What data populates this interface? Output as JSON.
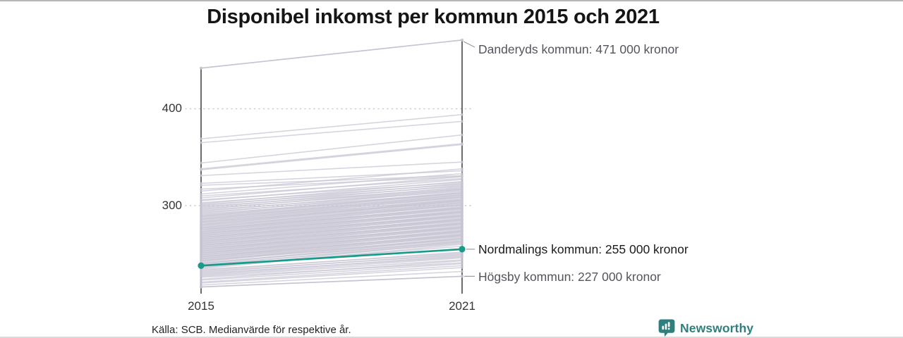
{
  "header": {
    "title": "Disponibel inkomst per kommun 2015 och 2021"
  },
  "chart_data": {
    "type": "line",
    "subtype": "slope-chart",
    "x_axis": {
      "ticks": [
        "2015",
        "2021"
      ]
    },
    "y_axis": {
      "ticks": [
        {
          "label": "400",
          "value": 400
        },
        {
          "label": "300",
          "value": 300
        }
      ]
    },
    "grid": "dotted horizontal at ticks",
    "highlight_series": {
      "name": "Nordmalings kommun",
      "label": "Nordmalings kommun: 255 000 kronor",
      "values": [
        238,
        255
      ],
      "color": "#199a8b"
    },
    "annotated_series": [
      {
        "name": "Danderyds kommun",
        "label": "Danderyds kommun: 471 000 kronor",
        "values": [
          442,
          471
        ]
      },
      {
        "name": "Högsby kommun",
        "label": "Högsby kommun: 227 000 kronor",
        "values": [
          216,
          227
        ]
      }
    ],
    "background_color": "#c7c5d3",
    "background_lines": [
      [
        218,
        232
      ],
      [
        220,
        236
      ],
      [
        221,
        238
      ],
      [
        223,
        240
      ],
      [
        224,
        243
      ],
      [
        226,
        241
      ],
      [
        227,
        244
      ],
      [
        228,
        246
      ],
      [
        229,
        248
      ],
      [
        230,
        247
      ],
      [
        231,
        250
      ],
      [
        232,
        249
      ],
      [
        233,
        252
      ],
      [
        234,
        251
      ],
      [
        235,
        260
      ],
      [
        236,
        262
      ],
      [
        237,
        258
      ],
      [
        238,
        263
      ],
      [
        239,
        261
      ],
      [
        240,
        264
      ],
      [
        240,
        266
      ],
      [
        241,
        263
      ],
      [
        242,
        267
      ],
      [
        243,
        265
      ],
      [
        243,
        269
      ],
      [
        244,
        266
      ],
      [
        245,
        270
      ],
      [
        245,
        268
      ],
      [
        246,
        271
      ],
      [
        247,
        269
      ],
      [
        247,
        273
      ],
      [
        248,
        270
      ],
      [
        249,
        274
      ],
      [
        249,
        272
      ],
      [
        250,
        275
      ],
      [
        251,
        273
      ],
      [
        251,
        277
      ],
      [
        252,
        274
      ],
      [
        253,
        278
      ],
      [
        253,
        276
      ],
      [
        254,
        279
      ],
      [
        255,
        277
      ],
      [
        255,
        281
      ],
      [
        256,
        278
      ],
      [
        257,
        282
      ],
      [
        257,
        280
      ],
      [
        258,
        283
      ],
      [
        259,
        281
      ],
      [
        259,
        285
      ],
      [
        260,
        282
      ],
      [
        261,
        286
      ],
      [
        261,
        284
      ],
      [
        262,
        287
      ],
      [
        263,
        285
      ],
      [
        263,
        289
      ],
      [
        264,
        286
      ],
      [
        265,
        290
      ],
      [
        265,
        288
      ],
      [
        266,
        291
      ],
      [
        267,
        289
      ],
      [
        267,
        293
      ],
      [
        268,
        290
      ],
      [
        269,
        294
      ],
      [
        269,
        292
      ],
      [
        270,
        295
      ],
      [
        271,
        293
      ],
      [
        271,
        297
      ],
      [
        272,
        294
      ],
      [
        273,
        298
      ],
      [
        273,
        296
      ],
      [
        274,
        299
      ],
      [
        275,
        297
      ],
      [
        275,
        301
      ],
      [
        276,
        298
      ],
      [
        277,
        302
      ],
      [
        277,
        300
      ],
      [
        278,
        303
      ],
      [
        279,
        301
      ],
      [
        280,
        305
      ],
      [
        280,
        303
      ],
      [
        281,
        306
      ],
      [
        282,
        304
      ],
      [
        283,
        307
      ],
      [
        283,
        305
      ],
      [
        284,
        309
      ],
      [
        285,
        306
      ],
      [
        286,
        310
      ],
      [
        286,
        308
      ],
      [
        287,
        311
      ],
      [
        288,
        309
      ],
      [
        289,
        313
      ],
      [
        289,
        311
      ],
      [
        290,
        314
      ],
      [
        291,
        312
      ],
      [
        292,
        316
      ],
      [
        293,
        313
      ],
      [
        294,
        317
      ],
      [
        295,
        315
      ],
      [
        296,
        319
      ],
      [
        297,
        317
      ],
      [
        298,
        321
      ],
      [
        299,
        318
      ],
      [
        300,
        323
      ],
      [
        301,
        320
      ],
      [
        302,
        325
      ],
      [
        303,
        322
      ],
      [
        305,
        327
      ],
      [
        306,
        324
      ],
      [
        308,
        330
      ],
      [
        310,
        328
      ],
      [
        312,
        333
      ],
      [
        315,
        338
      ],
      [
        317,
        330
      ],
      [
        321,
        331
      ],
      [
        323,
        336
      ],
      [
        331,
        345
      ],
      [
        337,
        363
      ],
      [
        338,
        364
      ],
      [
        344,
        373
      ],
      [
        365,
        387
      ],
      [
        369,
        394
      ]
    ]
  },
  "footer": {
    "source": "Källa: SCB. Medianvärde för respektive år.",
    "brand": "Newsworthy"
  }
}
